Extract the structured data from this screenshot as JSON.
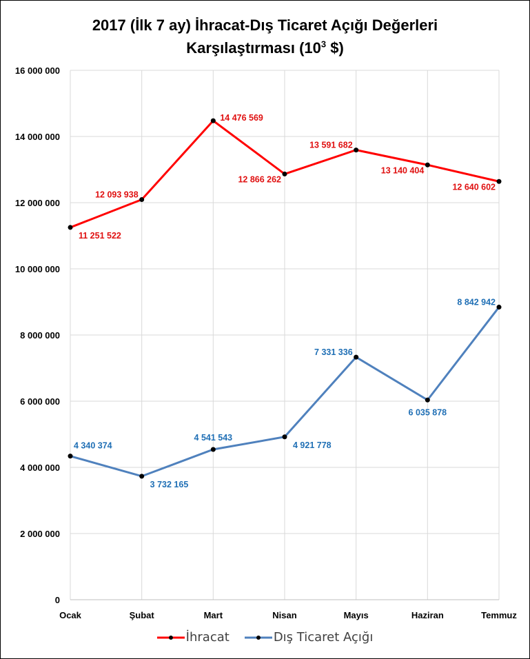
{
  "chart_data": {
    "type": "line",
    "title_line1": "2017 (İlk 7 ay) İhracat-Dış Ticaret Açığı Değerleri",
    "title_line2_prefix": "Karşılaştırması (10",
    "title_line2_sup": "3",
    "title_line2_suffix": " $)",
    "categories": [
      "Ocak",
      "Şubat",
      "Mart",
      "Nisan",
      "Mayıs",
      "Haziran",
      "Temmuz"
    ],
    "ylim": [
      0,
      16000000
    ],
    "yticks": [
      0,
      2000000,
      4000000,
      6000000,
      8000000,
      10000000,
      12000000,
      14000000,
      16000000
    ],
    "ytick_labels": [
      "0",
      "2 000 000",
      "4 000 000",
      "6 000 000",
      "8 000 000",
      "10 000 000",
      "12 000 000",
      "14 000 000",
      "16 000 000"
    ],
    "grid": true,
    "legend_position": "bottom",
    "series": [
      {
        "name": "İhracat",
        "color": "#ff0000",
        "label_color": "#e01010",
        "values": [
          11251522,
          12093938,
          14476569,
          12866262,
          13591682,
          13140404,
          12640602
        ],
        "labels": [
          "11 251 522",
          "12 093 938",
          "14 476 569",
          "12 866 262",
          "13 591 682",
          "13 140 404",
          "12 640 602"
        ],
        "label_pos": [
          "below-right",
          "above-left",
          "right",
          "below-left",
          "above-left",
          "below-left",
          "below-left"
        ]
      },
      {
        "name": "Dış Ticaret Açığı",
        "color": "#4f81bd",
        "label_color": "#1f6fb5",
        "values": [
          4340374,
          3732165,
          4541543,
          4921778,
          7331336,
          6035878,
          8842942
        ],
        "labels": [
          "4 340 374",
          "3 732 165",
          "4 541 543",
          "4 921 778",
          "7 331 336",
          "6 035 878",
          "8 842 942"
        ],
        "label_pos": [
          "above-right",
          "below-right",
          "above",
          "below-right",
          "above-left",
          "below",
          "above-left"
        ]
      }
    ]
  }
}
